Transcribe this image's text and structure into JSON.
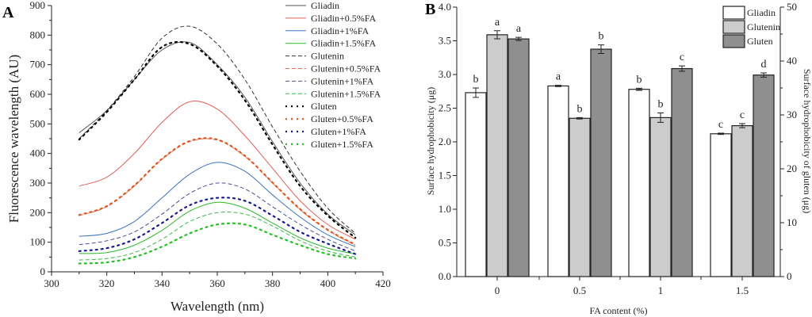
{
  "chart_data": [
    {
      "panel": "A",
      "type": "line",
      "xlabel": "Wavelength (nm)",
      "ylabel": "Fluorescence wavelength (AU)",
      "xlim": [
        300,
        420
      ],
      "ylim": [
        0,
        900
      ],
      "xticks": [
        300,
        320,
        340,
        360,
        380,
        400,
        420
      ],
      "yticks": [
        0,
        100,
        200,
        300,
        400,
        500,
        600,
        700,
        800,
        900
      ],
      "grid": false,
      "legend_position": "top-right",
      "x": [
        310,
        320,
        330,
        340,
        350,
        360,
        370,
        380,
        390,
        400,
        410
      ],
      "series": [
        {
          "name": "Gliadin",
          "color": "#555555",
          "style": "solid",
          "values": [
            470,
            545,
            650,
            750,
            775,
            700,
            590,
            440,
            300,
            195,
            125
          ]
        },
        {
          "name": "Gliadin+0.5%FA",
          "color": "#e0605a",
          "style": "solid",
          "values": [
            290,
            320,
            400,
            505,
            575,
            550,
            460,
            350,
            240,
            160,
            110
          ]
        },
        {
          "name": "Gliadin+1%FA",
          "color": "#3a75c4",
          "style": "solid",
          "values": [
            120,
            130,
            170,
            250,
            330,
            370,
            340,
            260,
            185,
            125,
            85
          ]
        },
        {
          "name": "Gliadin+1.5%FA",
          "color": "#2db82d",
          "style": "solid",
          "values": [
            62,
            65,
            90,
            140,
            205,
            235,
            215,
            165,
            115,
            80,
            60
          ]
        },
        {
          "name": "Glutenin",
          "color": "#333333",
          "style": "dashed",
          "values": [
            450,
            545,
            660,
            790,
            830,
            770,
            650,
            490,
            340,
            215,
            130
          ]
        },
        {
          "name": "Glutenin+0.5%FA",
          "color": "#e06a5a",
          "style": "dashed",
          "values": [
            190,
            220,
            290,
            380,
            440,
            445,
            390,
            300,
            210,
            140,
            90
          ]
        },
        {
          "name": "Glutenin+1%FA",
          "color": "#4a4aa0",
          "style": "dashed",
          "values": [
            92,
            105,
            135,
            195,
            265,
            300,
            280,
            220,
            160,
            110,
            70
          ]
        },
        {
          "name": "Glutenin+1.5%FA",
          "color": "#3cb84a",
          "style": "dashed",
          "values": [
            40,
            45,
            65,
            110,
            170,
            200,
            195,
            155,
            105,
            70,
            50
          ]
        },
        {
          "name": "Gluten",
          "color": "#000000",
          "style": "dotted",
          "values": [
            447,
            540,
            650,
            760,
            770,
            695,
            580,
            430,
            290,
            190,
            115
          ]
        },
        {
          "name": "Gluten+0.5%FA",
          "color": "#e0561e",
          "style": "dotted",
          "values": [
            192,
            222,
            292,
            382,
            442,
            447,
            392,
            302,
            212,
            142,
            92
          ]
        },
        {
          "name": "Gluten+1%FA",
          "color": "#1a1a90",
          "style": "dotted",
          "values": [
            70,
            80,
            110,
            165,
            225,
            250,
            240,
            190,
            135,
            95,
            60
          ]
        },
        {
          "name": "Gluten+1.5%FA",
          "color": "#22c022",
          "style": "dotted",
          "values": [
            28,
            32,
            50,
            85,
            130,
            160,
            160,
            125,
            90,
            60,
            45
          ]
        }
      ]
    },
    {
      "panel": "B",
      "type": "bar",
      "xlabel": "FA content (%)",
      "ylabel": "Surface hydrophobicity (μg)",
      "ylabel_right": "Surface hydrophobicity of gluten (μg)",
      "categories": [
        "0",
        "0.5",
        "1",
        "1.5"
      ],
      "ylim": [
        0,
        4.0
      ],
      "yticks": [
        "0.0",
        "0.5",
        "1.0",
        "1.5",
        "2.0",
        "2.5",
        "3.0",
        "3.5",
        "4.0"
      ],
      "ylim_right": [
        0,
        50
      ],
      "yticks_right": [
        "0",
        "10",
        "20",
        "30",
        "40",
        "50"
      ],
      "grid": false,
      "legend_position": "top-right",
      "series": [
        {
          "name": "Gliadin",
          "axis": "left",
          "color": "#ffffff",
          "values": [
            2.73,
            2.83,
            2.78,
            2.12
          ],
          "errors": [
            0.07,
            0.01,
            0.015,
            0.01
          ],
          "letters": [
            "b",
            "a",
            "b",
            "c"
          ]
        },
        {
          "name": "Glutenin",
          "axis": "left",
          "color": "#cccccc",
          "values": [
            3.59,
            2.35,
            2.36,
            2.24
          ],
          "errors": [
            0.06,
            0.01,
            0.07,
            0.03
          ],
          "letters": [
            "a",
            "b",
            "b",
            "c"
          ]
        },
        {
          "name": "Gluten",
          "axis": "right",
          "color": "#8f8f8f",
          "values": [
            44.1,
            42.2,
            38.6,
            37.4
          ],
          "errors": [
            0.3,
            0.8,
            0.5,
            0.4
          ],
          "letters": [
            "a",
            "b",
            "c",
            "d"
          ]
        }
      ]
    }
  ]
}
